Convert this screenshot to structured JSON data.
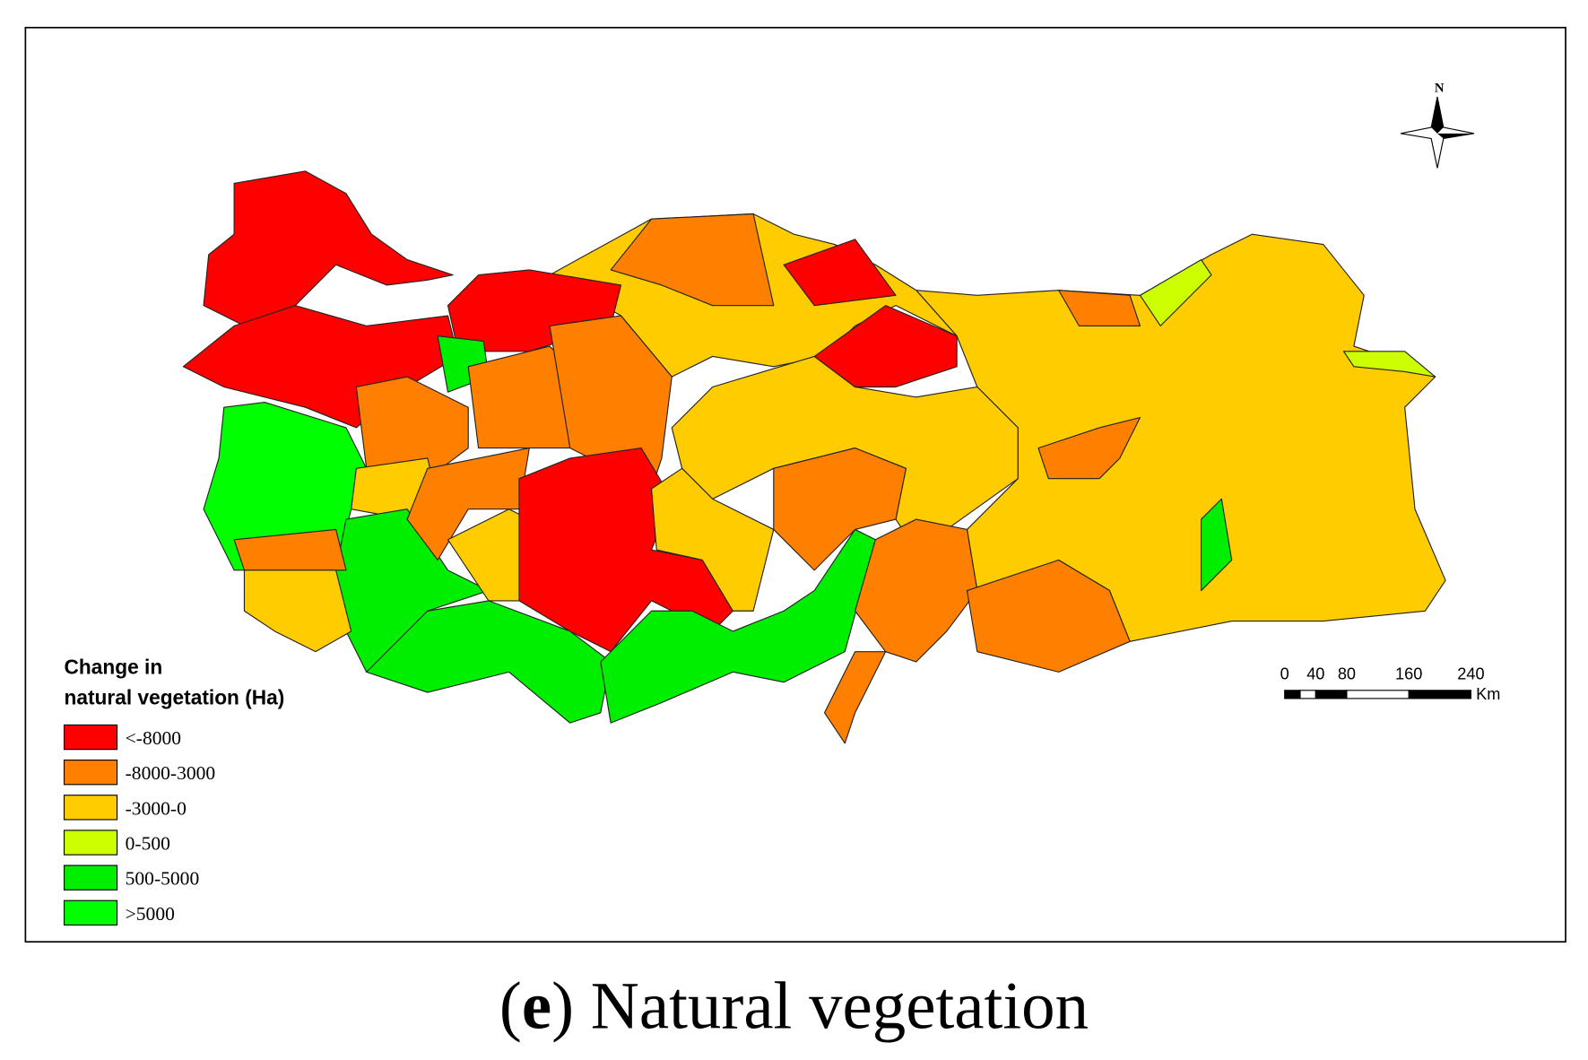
{
  "legend": {
    "title": [
      "Change in",
      "natural vegetation (Ha)"
    ],
    "items": [
      {
        "label": "<-8000",
        "color": "#ff0000"
      },
      {
        "label": "-8000-3000",
        "color": "#ff7f00"
      },
      {
        "label": "-3000-0",
        "color": "#ffcc00"
      },
      {
        "label": "0-500",
        "color": "#ccff00"
      },
      {
        "label": "500-5000",
        "color": "#00ee00"
      },
      {
        "label": ">5000",
        "color": "#00ff00"
      }
    ]
  },
  "north_arrow": {
    "label": "N"
  },
  "scale_bar": {
    "ticks": [
      0,
      40,
      80,
      160,
      240
    ],
    "unit": "Km"
  },
  "caption": {
    "parts": [
      "(",
      "e",
      ") Natural vegetation"
    ]
  }
}
